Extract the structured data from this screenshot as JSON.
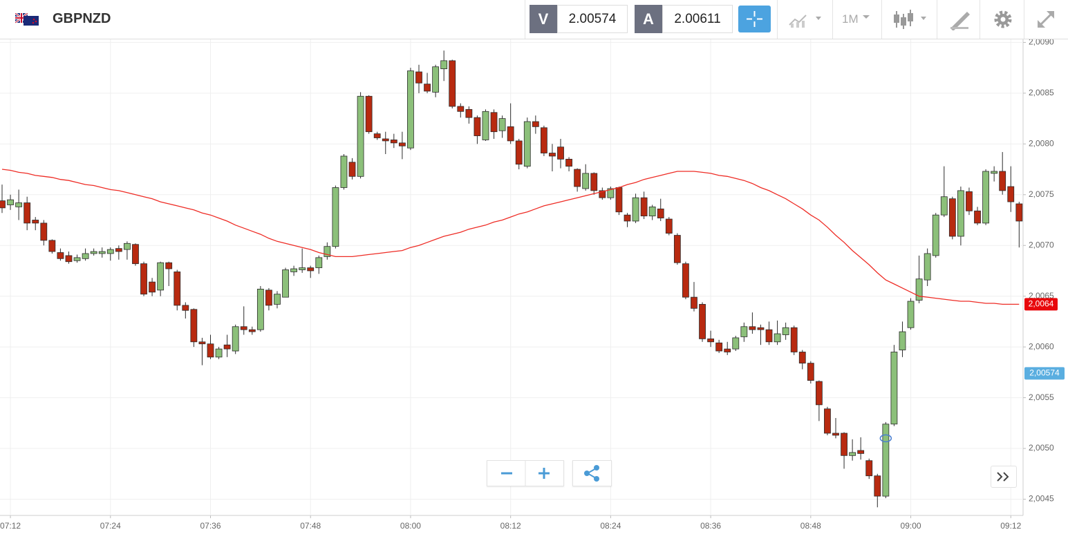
{
  "toolbar": {
    "symbol": "GBPNZD",
    "bid_tag": "V",
    "bid": "2.00574",
    "ask_tag": "A",
    "ask": "2.00611",
    "timeframe": "1M"
  },
  "chart_data": {
    "type": "candlestick",
    "categories": [
      null,
      "07:12",
      null,
      null,
      null,
      null,
      null,
      null,
      null,
      null,
      null,
      null,
      null,
      "07:24",
      null,
      null,
      null,
      null,
      null,
      null,
      null,
      null,
      null,
      null,
      null,
      "07:36",
      null,
      null,
      null,
      null,
      null,
      null,
      null,
      null,
      null,
      null,
      null,
      "07:48",
      null,
      null,
      null,
      null,
      null,
      null,
      null,
      null,
      null,
      null,
      null,
      "08:00",
      null,
      null,
      null,
      null,
      null,
      null,
      null,
      null,
      null,
      null,
      null,
      "08:12",
      null,
      null,
      null,
      null,
      null,
      null,
      null,
      null,
      null,
      null,
      null,
      "08:24",
      null,
      null,
      null,
      null,
      null,
      null,
      null,
      null,
      null,
      null,
      null,
      "08:36",
      null,
      null,
      null,
      null,
      null,
      null,
      null,
      null,
      null,
      null,
      null,
      "08:48",
      null,
      null,
      null,
      null,
      null,
      null,
      null,
      null,
      null,
      null,
      null,
      "09:00",
      null,
      null,
      null,
      null,
      null,
      null,
      null,
      null,
      null,
      null,
      null,
      "09:12",
      null
    ],
    "open": [
      2.00744,
      2.0074,
      2.00738,
      2.00742,
      2.00725,
      2.00722,
      2.00705,
      2.00693,
      2.0069,
      2.00685,
      2.00687,
      2.00692,
      2.00692,
      2.00692,
      2.00697,
      2.00696,
      2.00701,
      2.00682,
      2.00664,
      2.00656,
      2.00683,
      2.00674,
      2.00641,
      2.00637,
      2.00605,
      2.00603,
      2.0059,
      2.00602,
      2.00596,
      2.0062,
      2.00617,
      2.00617,
      2.00656,
      2.00642,
      2.00649,
      2.00674,
      2.00676,
      2.00678,
      2.00678,
      2.00689,
      2.00699,
      2.00757,
      2.00782,
      2.00768,
      2.00847,
      2.0081,
      2.00805,
      2.00804,
      2.00801,
      2.00796,
      2.00871,
      2.00859,
      2.00851,
      2.00874,
      2.00882,
      2.00837,
      2.00834,
      2.00826,
      2.00804,
      2.00831,
      2.00813,
      2.00817,
      2.00803,
      2.00778,
      2.00822,
      2.00816,
      2.00791,
      2.00797,
      2.00785,
      2.00775,
      2.00756,
      2.00771,
      2.00754,
      2.00747,
      2.00757,
      2.0073,
      2.00724,
      2.00747,
      2.00729,
      2.00736,
      2.00726,
      2.0071,
      2.00682,
      2.00649,
      2.00642,
      2.00608,
      2.00604,
      2.00598,
      2.00598,
      2.0061,
      2.0062,
      2.00619,
      2.00617,
      2.00605,
      2.00612,
      2.00619,
      2.00595,
      2.00584,
      2.00566,
      2.00539,
      2.00515,
      2.00515,
      2.00493,
      2.00498,
      2.00488,
      2.00473,
      2.00453,
      2.00524,
      2.00597,
      2.00619,
      2.00646,
      2.00666,
      2.0069,
      2.0073,
      2.00746,
      2.00709,
      2.00753,
      2.00734,
      2.00722,
      2.00771,
      2.00773,
      2.00758,
      2.00741
    ],
    "high": [
      2.0076,
      2.0075,
      2.00755,
      2.00748,
      2.00728,
      2.00725,
      2.00706,
      2.00697,
      2.00694,
      2.00691,
      2.00697,
      2.00697,
      2.00698,
      2.00698,
      2.007,
      2.00704,
      2.00702,
      2.00684,
      2.00668,
      2.00684,
      2.00684,
      2.00676,
      2.00644,
      2.00638,
      2.00609,
      2.00612,
      2.006,
      2.00612,
      2.00622,
      2.0064,
      2.0062,
      2.0066,
      2.00658,
      2.00655,
      2.00678,
      2.0068,
      2.00697,
      2.0068,
      2.0069,
      2.00703,
      2.00759,
      2.0079,
      2.00786,
      2.00851,
      2.00848,
      2.00812,
      2.00812,
      2.0081,
      2.00812,
      2.00875,
      2.00878,
      2.0087,
      2.00878,
      2.00892,
      2.00883,
      2.0084,
      2.00837,
      2.00828,
      2.00834,
      2.00834,
      2.00828,
      2.0084,
      2.00805,
      2.00826,
      2.00828,
      2.00818,
      2.008,
      2.00805,
      2.00787,
      2.00776,
      2.0078,
      2.00772,
      2.00757,
      2.00758,
      2.00758,
      2.00732,
      2.00751,
      2.00753,
      2.0074,
      2.00746,
      2.00728,
      2.00712,
      2.00684,
      2.00664,
      2.00644,
      2.00616,
      2.00607,
      2.00605,
      2.00611,
      2.00624,
      2.00634,
      2.00622,
      2.00625,
      2.00626,
      2.00624,
      2.00621,
      2.00597,
      2.00586,
      2.00567,
      2.00541,
      2.0053,
      2.00516,
      2.00509,
      2.00511,
      2.0049,
      2.00475,
      2.00526,
      2.00602,
      2.00625,
      2.00648,
      2.0069,
      2.00697,
      2.00732,
      2.00778,
      2.00748,
      2.00758,
      2.00757,
      2.00738,
      2.00775,
      2.00778,
      2.00792,
      2.00778,
      2.00743
    ],
    "low": [
      2.00732,
      2.00735,
      2.00725,
      2.00715,
      2.00715,
      2.007,
      2.00692,
      2.00685,
      2.00682,
      2.00683,
      2.00685,
      2.0069,
      2.00688,
      2.00685,
      2.00686,
      2.00686,
      2.0068,
      2.0065,
      2.0065,
      2.0065,
      2.0066,
      2.00636,
      2.00628,
      2.006,
      2.00582,
      2.00588,
      2.00588,
      2.0059,
      2.00593,
      2.00612,
      2.00612,
      2.00615,
      2.00636,
      2.00638,
      2.00649,
      2.0067,
      2.00673,
      2.00668,
      2.00672,
      2.00686,
      2.00697,
      2.00755,
      2.00765,
      2.00766,
      2.0081,
      2.00804,
      2.0079,
      2.00796,
      2.00785,
      2.00794,
      2.0085,
      2.0085,
      2.00846,
      2.00862,
      2.00835,
      2.00826,
      2.0082,
      2.008,
      2.00803,
      2.00805,
      2.00806,
      2.008,
      2.00775,
      2.00776,
      2.0081,
      2.00788,
      2.00773,
      2.00776,
      2.00773,
      2.00753,
      2.00754,
      2.0075,
      2.00745,
      2.00745,
      2.0073,
      2.00718,
      2.00722,
      2.00726,
      2.00725,
      2.00724,
      2.0071,
      2.00681,
      2.00647,
      2.00635,
      2.00605,
      2.006,
      2.00594,
      2.00592,
      2.00596,
      2.00605,
      2.00613,
      2.00602,
      2.00602,
      2.00602,
      2.00607,
      2.00592,
      2.00578,
      2.00564,
      2.00527,
      2.00513,
      2.0051,
      2.0048,
      2.00488,
      2.00489,
      2.0047,
      2.00442,
      2.00451,
      2.00522,
      2.0059,
      2.00617,
      2.00643,
      2.0066,
      2.00688,
      2.00728,
      2.00706,
      2.007,
      2.0073,
      2.0072,
      2.0072,
      2.00763,
      2.0075,
      2.00733,
      2.00698
    ],
    "close": [
      2.00737,
      2.00745,
      2.00742,
      2.00722,
      2.00722,
      2.00705,
      2.00694,
      2.00687,
      2.00684,
      2.00688,
      2.00692,
      2.00694,
      2.00694,
      2.00696,
      2.00694,
      2.00702,
      2.00682,
      2.00652,
      2.00654,
      2.00683,
      2.00677,
      2.00641,
      2.00636,
      2.00605,
      2.00603,
      2.0059,
      2.00598,
      2.00598,
      2.0062,
      2.00617,
      2.00615,
      2.00657,
      2.00641,
      2.00652,
      2.00676,
      2.00677,
      2.00678,
      2.00675,
      2.00688,
      2.00699,
      2.00757,
      2.00788,
      2.00768,
      2.00847,
      2.00812,
      2.00806,
      2.00803,
      2.00801,
      2.00798,
      2.00872,
      2.0086,
      2.00852,
      2.00876,
      2.00882,
      2.00837,
      2.00832,
      2.00826,
      2.00808,
      2.00832,
      2.00812,
      2.00825,
      2.00803,
      2.0078,
      2.00822,
      2.00817,
      2.00791,
      2.00788,
      2.00785,
      2.00778,
      2.00758,
      2.00771,
      2.00754,
      2.00747,
      2.00756,
      2.00733,
      2.00724,
      2.00747,
      2.00729,
      2.00738,
      2.00727,
      2.00712,
      2.00683,
      2.00649,
      2.00638,
      2.00608,
      2.00605,
      2.00596,
      2.00595,
      2.00609,
      2.0062,
      2.00617,
      2.00617,
      2.00605,
      2.00613,
      2.00619,
      2.00595,
      2.00584,
      2.00567,
      2.00543,
      2.00515,
      2.00513,
      2.00493,
      2.00496,
      2.00495,
      2.00473,
      2.00453,
      2.00524,
      2.00595,
      2.00615,
      2.00645,
      2.00667,
      2.00692,
      2.0073,
      2.00748,
      2.00709,
      2.00754,
      2.00734,
      2.00722,
      2.00773,
      2.00773,
      2.00754,
      2.00743,
      2.00724
    ],
    "up_color": "#8cc07a",
    "down_color": "#b82a10",
    "ma": {
      "color": "#ee2b24",
      "values": [
        2.00775,
        2.00774,
        2.00772,
        2.00771,
        2.00769,
        2.00768,
        2.00767,
        2.00765,
        2.00764,
        2.00762,
        2.0076,
        2.00759,
        2.00757,
        2.00755,
        2.00754,
        2.00752,
        2.0075,
        2.00748,
        2.00746,
        2.00743,
        2.00741,
        2.00739,
        2.00737,
        2.00735,
        2.00732,
        2.0073,
        2.00727,
        2.00724,
        2.0072,
        2.00717,
        2.00714,
        2.00711,
        2.00707,
        2.00704,
        2.00702,
        2.007,
        2.00698,
        2.00696,
        2.00693,
        2.00691,
        2.00689,
        2.00689,
        2.00689,
        2.0069,
        2.00691,
        2.00692,
        2.00693,
        2.00694,
        2.00695,
        2.00698,
        2.007,
        2.00703,
        2.00706,
        2.00709,
        2.00711,
        2.00713,
        2.00716,
        2.00718,
        2.0072,
        2.00723,
        2.00725,
        2.00728,
        2.00731,
        2.00733,
        2.00736,
        2.00739,
        2.00741,
        2.00743,
        2.00745,
        2.00747,
        2.00749,
        2.00751,
        2.00753,
        2.00755,
        2.00757,
        2.0076,
        2.00762,
        2.00765,
        2.00767,
        2.00769,
        2.00771,
        2.00773,
        2.00773,
        2.00773,
        2.00772,
        2.00771,
        2.00769,
        2.00768,
        2.00766,
        2.00764,
        2.00761,
        2.00757,
        2.00754,
        2.0075,
        2.00746,
        2.00741,
        2.00736,
        2.0073,
        2.00725,
        2.00718,
        2.0071,
        2.00703,
        2.00695,
        2.00688,
        2.00681,
        2.00673,
        2.00666,
        2.00662,
        2.00658,
        2.00654,
        2.0065,
        2.00649,
        2.00648,
        2.00647,
        2.00646,
        2.00645,
        2.00645,
        2.00644,
        2.00643,
        2.00643,
        2.00642,
        2.00642,
        2.00642
      ],
      "last_label": "2,0064"
    },
    "bid_line": {
      "value": 2.00574,
      "label": "2,00574",
      "color": "#5aaee0"
    },
    "ylim": [
      2.00434,
      2.00903
    ],
    "yticks": [
      {
        "value": 2.0045,
        "label": "2,0045"
      },
      {
        "value": 2.005,
        "label": "2,0050"
      },
      {
        "value": 2.0055,
        "label": "2,0055"
      },
      {
        "value": 2.006,
        "label": "2,0060"
      },
      {
        "value": 2.0065,
        "label": "2,0065"
      },
      {
        "value": 2.007,
        "label": "2,0070"
      },
      {
        "value": 2.0075,
        "label": "2,0075"
      },
      {
        "value": 2.008,
        "label": "2,0080"
      },
      {
        "value": 2.0085,
        "label": "2,0085"
      },
      {
        "value": 2.009,
        "label": "2,0090"
      }
    ],
    "grid": true
  }
}
